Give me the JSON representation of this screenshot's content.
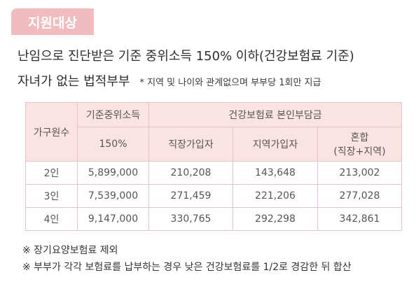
{
  "badge": "지원대상",
  "line1": "난임으로 진단받은 기준 중위소득 150% 이하(건강보험료 기준)",
  "line2": "자녀가 없는 법적부부",
  "line2_note": "* 지역 및 나이와 관계없으며 부부당 1회만 지급",
  "table": {
    "col_household": "가구원수",
    "col_median": "기준중위소득",
    "col_median_sub": "150%",
    "col_insurance": "건강보험료 본인부담금",
    "col_employee": "직장가입자",
    "col_regional": "지역가입자",
    "col_mixed_1": "혼합",
    "col_mixed_2": "(직장+지역)",
    "rows": [
      {
        "household": "2인",
        "median": "5,899,000",
        "employee": "210,208",
        "regional": "143,648",
        "mixed": "213,002"
      },
      {
        "household": "3인",
        "median": "7,539,000",
        "employee": "271,459",
        "regional": "221,206",
        "mixed": "277,028"
      },
      {
        "household": "4인",
        "median": "9,147,000",
        "employee": "330,765",
        "regional": "292,298",
        "mixed": "342,861"
      }
    ]
  },
  "footnotes": [
    "※ 장기요양보험료 제외",
    "※ 부부가 각각 보험료를 납부하는 경우 낮은 건강보험료를 1/2로 경감한 뒤 합산"
  ]
}
